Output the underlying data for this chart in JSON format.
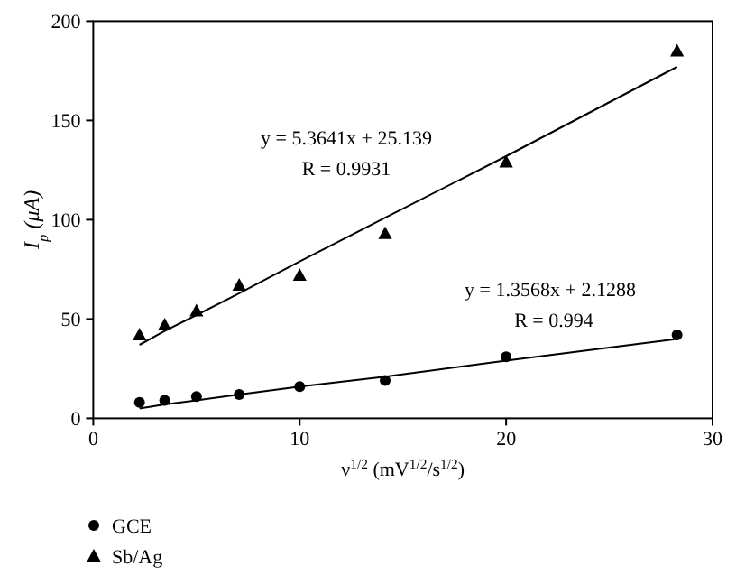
{
  "chart_data": {
    "type": "scatter",
    "xlabel": "ν$^{1/2}$ (mV$^{1/2}$/s$^{1/2}$)",
    "ylabel": "I$_{p}$ (μA)",
    "xlim": [
      0,
      30
    ],
    "xticks": [
      0,
      10,
      20,
      30
    ],
    "ylim": [
      0,
      200
    ],
    "yticks": [
      0,
      50,
      100,
      150,
      200
    ],
    "grid": false,
    "legend": "bottom left",
    "x": [
      2.24,
      3.46,
      5,
      7.07,
      10,
      14.14,
      20,
      28.28
    ],
    "series": [
      {
        "name": "GCE",
        "color": "#000000",
        "marker": "circle",
        "values": [
          8,
          9,
          11,
          12,
          16,
          19,
          31,
          42
        ]
      },
      {
        "name": "Sb/Ag",
        "color": "#000000",
        "marker": "triangle",
        "values": [
          42,
          47,
          54,
          67,
          72,
          93,
          129,
          185
        ]
      },
      {
        "type": "line",
        "color": "#000000",
        "values": [
          5,
          7,
          9,
          12,
          16,
          21,
          29,
          40
        ]
      },
      {
        "type": "line",
        "color": "#000000",
        "values": [
          37,
          44,
          52,
          63,
          79,
          101,
          132,
          177
        ]
      }
    ],
    "annotations": [
      "y = 1.3568x + 2.1288",
      "R = 0.994",
      "y = 5.3641x + 25.139",
      "R = 0.9931"
    ]
  }
}
